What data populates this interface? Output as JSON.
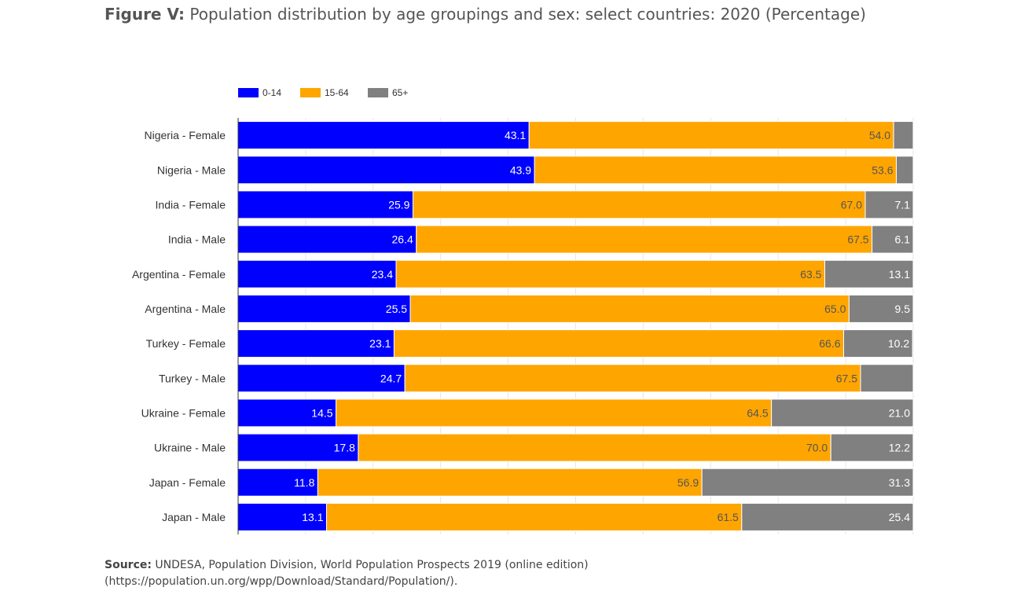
{
  "figure": {
    "label": "Figure V:",
    "title": "Population distribution by age groupings and sex: select countries: 2020 (Percentage)"
  },
  "source": {
    "label": "Source:",
    "line1": "UNDESA, Population Division, World Population Prospects 2019 (online edition)",
    "line2": "(https://population.un.org/wpp/Download/Standard/Population/)."
  },
  "chart_data": {
    "type": "bar",
    "orientation": "horizontal",
    "stacked": true,
    "legend_position": "top-left",
    "grid": true,
    "xlim": [
      0,
      100
    ],
    "categories": [
      "Nigeria - Female",
      "Nigeria - Male",
      "India - Female",
      "India - Male",
      "Argentina - Female",
      "Argentina - Male",
      "Turkey - Female",
      "Turkey - Male",
      "Ukraine - Female",
      "Ukraine - Male",
      "Japan - Female",
      "Japan - Male"
    ],
    "series": [
      {
        "name": "0-14",
        "color": "#0000ff",
        "label_color": "#ffffff",
        "values": [
          43.1,
          43.9,
          25.9,
          26.4,
          23.4,
          25.5,
          23.1,
          24.7,
          14.5,
          17.8,
          11.8,
          13.1
        ]
      },
      {
        "name": "15-64",
        "color": "#ffa500",
        "label_color": "#555555",
        "values": [
          54.0,
          53.6,
          67.0,
          67.5,
          63.5,
          65.0,
          66.6,
          67.5,
          64.5,
          70.0,
          56.9,
          61.5
        ]
      },
      {
        "name": "65+",
        "color": "#808080",
        "label_color": "#ffffff",
        "values": [
          2.9,
          2.5,
          7.1,
          6.1,
          13.1,
          9.5,
          10.2,
          7.8,
          21.0,
          12.2,
          31.3,
          25.4
        ],
        "labels_shown": [
          false,
          false,
          true,
          true,
          true,
          true,
          true,
          false,
          true,
          true,
          true,
          true
        ]
      }
    ]
  }
}
